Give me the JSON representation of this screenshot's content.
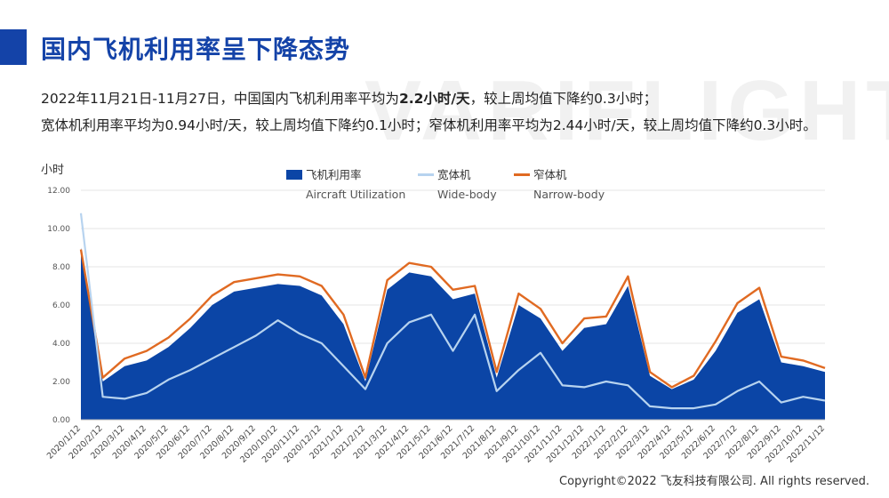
{
  "title": "国内飞机利用率呈下降态势",
  "watermark": "VARIFLIGHT",
  "summary": {
    "line1_pre": "2022年11月21日-11月27日，中国国内飞机利用率平均为",
    "line1_bold": "2.2小时/天",
    "line1_post": "，较上周均值下降约0.3小时；",
    "line2": "宽体机利用率平均为0.94小时/天，较上周均值下降约0.1小时；窄体机利用率平均为2.44小时/天，较上周均值下降约0.3小时。"
  },
  "copyright": "Copyright©2022 飞友科技有限公司. All rights reserved.",
  "colors": {
    "title": "#1443a8",
    "utilization": "#0b45a6",
    "widebody": "#b7d3ef",
    "narrowbody": "#e06a22"
  },
  "chart_data": {
    "type": "area",
    "ylabel": "小时",
    "ylim": [
      0,
      12
    ],
    "yticks": [
      "0.00",
      "2.00",
      "4.00",
      "6.00",
      "8.00",
      "10.00",
      "12.00"
    ],
    "grid": true,
    "legend_position": "top-center",
    "legend": [
      {
        "name": "飞机利用率",
        "name_en": "Aircraft Utilization",
        "kind": "area",
        "color": "#0b45a6"
      },
      {
        "name": "宽体机",
        "name_en": "Wide-body",
        "kind": "line",
        "color": "#b7d3ef"
      },
      {
        "name": "窄体机",
        "name_en": "Narrow-body",
        "kind": "line",
        "color": "#e06a22"
      }
    ],
    "x": [
      "2020/1/12",
      "2020/2/12",
      "2020/3/12",
      "2020/4/12",
      "2020/5/12",
      "2020/6/12",
      "2020/7/12",
      "2020/8/12",
      "2020/9/12",
      "2020/10/12",
      "2020/11/12",
      "2020/12/12",
      "2021/1/12",
      "2021/2/12",
      "2021/3/12",
      "2021/4/12",
      "2021/5/12",
      "2021/6/12",
      "2021/7/12",
      "2021/8/12",
      "2021/9/12",
      "2021/10/12",
      "2021/11/12",
      "2021/12/12",
      "2022/1/12",
      "2022/2/12",
      "2022/3/12",
      "2022/4/12",
      "2022/5/12",
      "2022/6/12",
      "2022/7/12",
      "2022/8/12",
      "2022/9/12",
      "2022/10/12",
      "2022/11/12"
    ],
    "series": [
      {
        "name": "飞机利用率",
        "values": [
          9.0,
          2.0,
          2.8,
          3.1,
          3.8,
          4.8,
          6.0,
          6.7,
          6.9,
          7.1,
          7.0,
          6.5,
          5.0,
          2.0,
          6.8,
          7.7,
          7.5,
          6.3,
          6.6,
          2.2,
          6.0,
          5.3,
          3.6,
          4.8,
          5.0,
          7.0,
          2.3,
          1.6,
          2.1,
          3.6,
          5.6,
          6.3,
          3.0,
          2.8,
          2.5
        ]
      },
      {
        "name": "宽体机",
        "values": [
          10.8,
          1.2,
          1.1,
          1.4,
          2.1,
          2.6,
          3.2,
          3.8,
          4.4,
          5.2,
          4.5,
          4.0,
          2.8,
          1.6,
          4.0,
          5.1,
          5.5,
          3.6,
          5.5,
          1.5,
          2.6,
          3.5,
          1.8,
          1.7,
          2.0,
          1.8,
          0.7,
          0.6,
          0.6,
          0.8,
          1.5,
          2.0,
          0.9,
          1.2,
          1.0
        ]
      },
      {
        "name": "窄体机",
        "values": [
          8.9,
          2.2,
          3.2,
          3.6,
          4.3,
          5.3,
          6.5,
          7.2,
          7.4,
          7.6,
          7.5,
          7.0,
          5.5,
          2.2,
          7.3,
          8.2,
          8.0,
          6.8,
          7.0,
          2.5,
          6.6,
          5.8,
          4.0,
          5.3,
          5.4,
          7.5,
          2.5,
          1.7,
          2.3,
          4.1,
          6.1,
          6.9,
          3.3,
          3.1,
          2.7
        ]
      }
    ]
  }
}
